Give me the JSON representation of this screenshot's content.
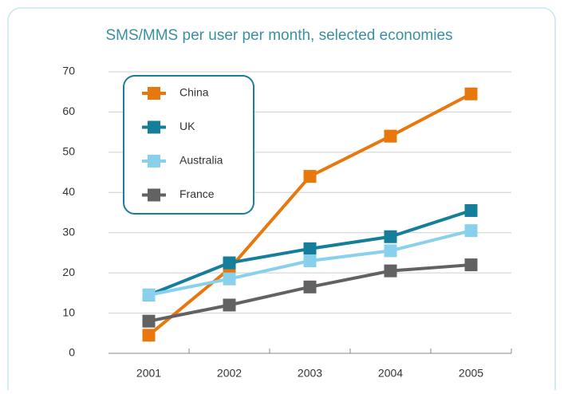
{
  "chart_data": {
    "type": "line",
    "title": "SMS/MMS per user per month, selected economies",
    "categories": [
      "2001",
      "2002",
      "2003",
      "2004",
      "2005"
    ],
    "series": [
      {
        "name": "China",
        "color": "#e8780e",
        "values": [
          4.5,
          21,
          44,
          54,
          64.5
        ]
      },
      {
        "name": "UK",
        "color": "#157e9a",
        "values": [
          14.5,
          22.5,
          26,
          29,
          35.5
        ]
      },
      {
        "name": "Australia",
        "color": "#88d0ec",
        "values": [
          14.5,
          18.5,
          23,
          25.5,
          30.5
        ]
      },
      {
        "name": "France",
        "color": "#626262",
        "values": [
          8,
          12,
          16.5,
          20.5,
          22
        ]
      }
    ],
    "ylim": [
      0,
      70
    ],
    "yticks": [
      0,
      10,
      20,
      30,
      40,
      50,
      60,
      70
    ],
    "grid": true,
    "legend": "upper left"
  }
}
